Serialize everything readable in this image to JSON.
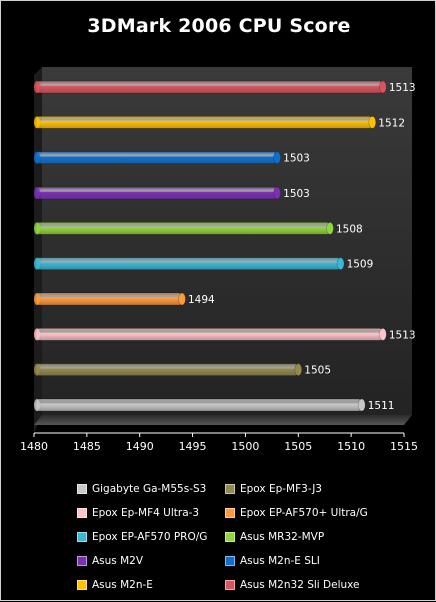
{
  "chart_data": {
    "type": "bar",
    "orientation": "horizontal",
    "title": "3DMark 2006 CPU Score",
    "xlim": [
      1480,
      1515
    ],
    "xticks": [
      1480,
      1485,
      1490,
      1495,
      1500,
      1505,
      1510,
      1515
    ],
    "grid": false,
    "legend_position": "bottom",
    "categories": [
      "Asus M2n32 Sli Deluxe",
      "Asus M2n-E",
      "Asus M2n-E SLI",
      "Asus M2V",
      "Asus MR32-MVP",
      "Epox EP-AF570 PRO/G",
      "Epox EP-AF570+ Ultra/G",
      "Epox Ep-MF4 Ultra-3",
      "Epox Ep-MF3-J3",
      "Gigabyte Ga-M55s-S3"
    ],
    "values": [
      1513,
      1512,
      1503,
      1503,
      1508,
      1509,
      1494,
      1513,
      1505,
      1511
    ],
    "value_labels": [
      "1513",
      "1512",
      "1503",
      "1503",
      "1508",
      "1509",
      "1494",
      "1513",
      "1505",
      "1511"
    ],
    "colors": [
      "#d9545c",
      "#ffc000",
      "#0f6fcf",
      "#7b2fb5",
      "#8fd63c",
      "#3bb8d6",
      "#ff9a3c",
      "#ffc2c8",
      "#948a4e",
      "#c8c8c8"
    ]
  },
  "legend": [
    {
      "label": "Gigabyte Ga-M55s-S3",
      "color": "#c8c8c8"
    },
    {
      "label": "Epox Ep-MF3-J3",
      "color": "#948a4e"
    },
    {
      "label": "Epox Ep-MF4 Ultra-3",
      "color": "#ffc2c8"
    },
    {
      "label": "Epox EP-AF570+ Ultra/G",
      "color": "#ff9a3c"
    },
    {
      "label": "Epox EP-AF570 PRO/G",
      "color": "#3bb8d6"
    },
    {
      "label": "Asus MR32-MVP",
      "color": "#8fd63c"
    },
    {
      "label": "Asus M2V",
      "color": "#7b2fb5"
    },
    {
      "label": "Asus M2n-E SLI",
      "color": "#0f6fcf"
    },
    {
      "label": "Asus M2n-E",
      "color": "#ffc000"
    },
    {
      "label": "Asus M2n32 Sli Deluxe",
      "color": "#d9545c"
    }
  ]
}
